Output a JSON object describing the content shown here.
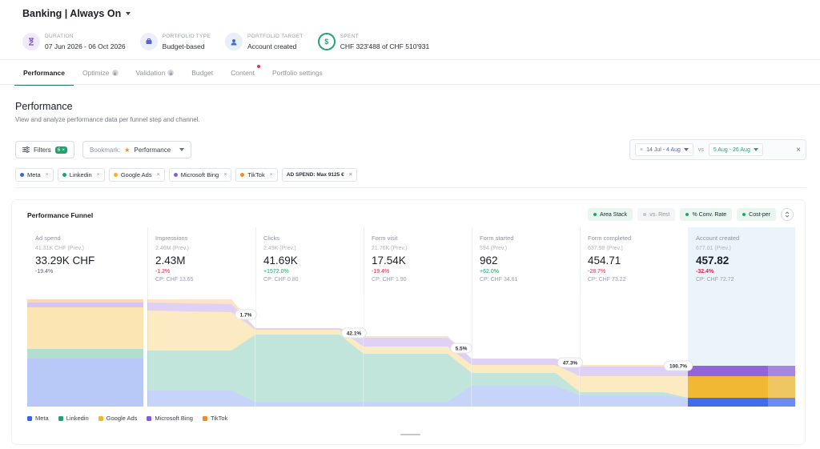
{
  "app": {
    "title": "Banking | Always On"
  },
  "meta": [
    {
      "label": "Duration",
      "value": "07 Jun 2026 - 06 Oct 2026",
      "icon": "hourglass-icon",
      "bg": "#efe9fb",
      "fg": "#7a56d6"
    },
    {
      "label": "Portfolio type",
      "value": "Budget-based",
      "icon": "portfolio-icon",
      "bg": "#eceefb",
      "fg": "#5b64c8"
    },
    {
      "label": "Portfolio target",
      "value": "Account created",
      "icon": "target-icon",
      "bg": "#e8effa",
      "fg": "#3f6fc9"
    },
    {
      "label": "Spent",
      "value": "CHF 323'488 of CHF 510'931",
      "icon": "dollar-icon",
      "bg": "#e7f6ee",
      "fg": "#1ea56f"
    }
  ],
  "tabs": [
    {
      "label": "Performance",
      "active": true,
      "lock": false,
      "dot": false
    },
    {
      "label": "Optimize",
      "active": false,
      "lock": true,
      "dot": false
    },
    {
      "label": "Validation",
      "active": false,
      "lock": true,
      "dot": false
    },
    {
      "label": "Budget",
      "active": false,
      "lock": false,
      "dot": false
    },
    {
      "label": "Content",
      "active": false,
      "lock": false,
      "dot": true
    },
    {
      "label": "Portfolio settings",
      "active": false,
      "lock": false,
      "dot": false
    }
  ],
  "section": {
    "title": "Performance",
    "subtitle": "View and analyze performance data per funnel step and channel."
  },
  "toolbar": {
    "filters_label": "Filters",
    "filters_count": "6",
    "bookmark_label": "Bookmark:",
    "bookmark_value": "Performance",
    "date_primary": "14 Jul - 4 Aug",
    "vs_label": "vs",
    "date_compare": "5 Aug - 26 Aug"
  },
  "chips": [
    {
      "label": "Meta",
      "color": "#3563e9",
      "icon": "meta-icon"
    },
    {
      "label": "Linkedin",
      "color": "#21a179",
      "icon": "linkedin-icon"
    },
    {
      "label": "Google Ads",
      "color": "#f2b524",
      "icon": "google-ads-icon"
    },
    {
      "label": "Microsoft Bing",
      "color": "#8c5ad8",
      "icon": "bing-icon"
    },
    {
      "label": "TikTok",
      "color": "#f08a24",
      "icon": "tiktok-icon"
    }
  ],
  "spend_chip": "AD SPEND: Max 9125 €",
  "card": {
    "title": "Performance Funnel",
    "toggles": [
      {
        "label": "Area Stack",
        "on": true
      },
      {
        "label": "vs. Rest",
        "on": false
      },
      {
        "label": "% Conv. Rate",
        "on": true
      },
      {
        "label": "Cost-per",
        "on": true
      }
    ]
  },
  "steps": [
    {
      "name": "Ad spend",
      "prev": "41.31K CHF (Prev.)",
      "value": "33.29K CHF",
      "delta": "-19.4%",
      "delta_dir": "neg",
      "cp": ""
    },
    {
      "name": "Impressions",
      "prev": "2.46M (Prev.)",
      "value": "2.43M",
      "delta": "-1.2%",
      "delta_dir": "neg",
      "cp": "CP: CHF 13.65"
    },
    {
      "name": "Clicks",
      "prev": "2.49K (Prev.)",
      "value": "41.69K",
      "delta": "+1572.0%",
      "delta_dir": "pos",
      "cp": "CP: CHF 0.80"
    },
    {
      "name": "Form visit",
      "prev": "21.76K (Prev.)",
      "value": "17.54K",
      "delta": "-19.4%",
      "delta_dir": "neg",
      "cp": "CP: CHF 1.90"
    },
    {
      "name": "Form started",
      "prev": "594 (Prev.)",
      "value": "962",
      "delta": "+62.0%",
      "delta_dir": "pos",
      "cp": "CP: CHF 34.61"
    },
    {
      "name": "Form completed",
      "prev": "637.98 (Prev.)",
      "value": "454.71",
      "delta": "-28.7%",
      "delta_dir": "neg",
      "cp": "CP: CHF 73.22"
    },
    {
      "name": "Account created",
      "prev": "677.01 (Prev.)",
      "value": "457.82",
      "delta": "-32.4%",
      "delta_dir": "neg",
      "cp": "CP: CHF 72.72"
    }
  ],
  "conversion_rates": [
    "1.7%",
    "42.1%",
    "5.5%",
    "47.3%",
    "100.7%"
  ],
  "legend": [
    {
      "label": "Meta",
      "color": "#3563e9"
    },
    {
      "label": "Linkedin",
      "color": "#21a179"
    },
    {
      "label": "Google Ads",
      "color": "#f2b524"
    },
    {
      "label": "Microsoft Bing",
      "color": "#8c5ad8"
    },
    {
      "label": "TikTok",
      "color": "#f08a24"
    }
  ]
}
